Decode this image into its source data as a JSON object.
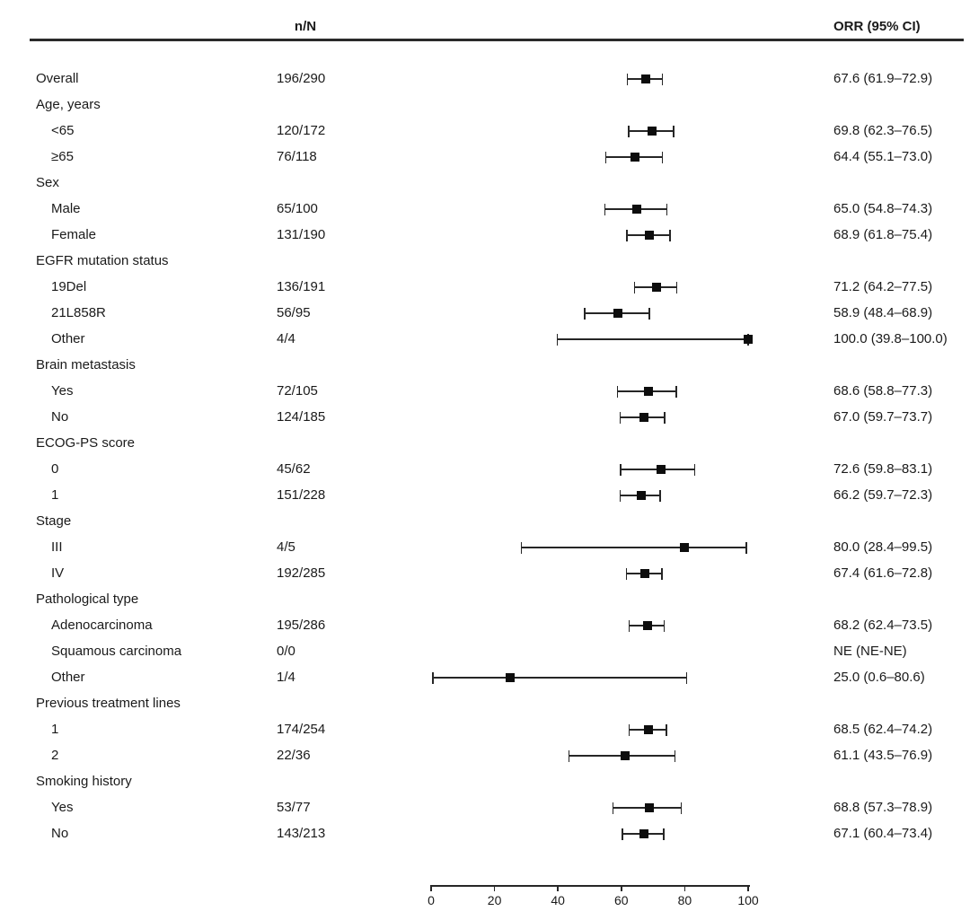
{
  "header": {
    "n_n_label": "n/N",
    "orr_label": "ORR (95% CI)"
  },
  "colors": {
    "text": "#1a1a1a",
    "marker": "#0d0d0d",
    "line": "#262626",
    "background": "#ffffff"
  },
  "chart_data": {
    "type": "forest",
    "title": "",
    "xlabel": "",
    "xlim": [
      0,
      100
    ],
    "x_ticks": [
      0,
      20,
      40,
      60,
      80,
      100
    ],
    "grid": false,
    "columns": {
      "measure_header": "n/N",
      "estimate_header": "ORR (95% CI)"
    },
    "rows": [
      {
        "label": "Overall",
        "indent": 0,
        "nN": "196/290",
        "orr": 67.6,
        "ci": [
          61.9,
          72.9
        ],
        "orr_text": "67.6 (61.9–72.9)"
      },
      {
        "label": "Age, years",
        "indent": 0,
        "nN": "",
        "orr": null,
        "ci": null,
        "orr_text": ""
      },
      {
        "label": "<65",
        "indent": 1,
        "nN": "120/172",
        "orr": 69.8,
        "ci": [
          62.3,
          76.5
        ],
        "orr_text": "69.8 (62.3–76.5)"
      },
      {
        "label": "≥65",
        "indent": 1,
        "nN": "76/118",
        "orr": 64.4,
        "ci": [
          55.1,
          73.0
        ],
        "orr_text": "64.4 (55.1–73.0)"
      },
      {
        "label": "Sex",
        "indent": 0,
        "nN": "",
        "orr": null,
        "ci": null,
        "orr_text": ""
      },
      {
        "label": "Male",
        "indent": 1,
        "nN": "65/100",
        "orr": 65.0,
        "ci": [
          54.8,
          74.3
        ],
        "orr_text": "65.0 (54.8–74.3)"
      },
      {
        "label": "Female",
        "indent": 1,
        "nN": "131/190",
        "orr": 68.9,
        "ci": [
          61.8,
          75.4
        ],
        "orr_text": "68.9 (61.8–75.4)"
      },
      {
        "label": "EGFR mutation status",
        "indent": 0,
        "nN": "",
        "orr": null,
        "ci": null,
        "orr_text": ""
      },
      {
        "label": "19Del",
        "indent": 1,
        "nN": "136/191",
        "orr": 71.2,
        "ci": [
          64.2,
          77.5
        ],
        "orr_text": "71.2 (64.2–77.5)"
      },
      {
        "label": "21L858R",
        "indent": 1,
        "nN": "56/95",
        "orr": 58.9,
        "ci": [
          48.4,
          68.9
        ],
        "orr_text": "58.9 (48.4–68.9)"
      },
      {
        "label": "Other",
        "indent": 1,
        "nN": "4/4",
        "orr": 100.0,
        "ci": [
          39.8,
          100.0
        ],
        "orr_text": "100.0 (39.8–100.0)"
      },
      {
        "label": "Brain metastasis",
        "indent": 0,
        "nN": "",
        "orr": null,
        "ci": null,
        "orr_text": ""
      },
      {
        "label": "Yes",
        "indent": 1,
        "nN": "72/105",
        "orr": 68.6,
        "ci": [
          58.8,
          77.3
        ],
        "orr_text": "68.6 (58.8–77.3)"
      },
      {
        "label": "No",
        "indent": 1,
        "nN": "124/185",
        "orr": 67.0,
        "ci": [
          59.7,
          73.7
        ],
        "orr_text": "67.0 (59.7–73.7)"
      },
      {
        "label": "ECOG-PS score",
        "indent": 0,
        "nN": "",
        "orr": null,
        "ci": null,
        "orr_text": ""
      },
      {
        "label": "0",
        "indent": 1,
        "nN": "45/62",
        "orr": 72.6,
        "ci": [
          59.8,
          83.1
        ],
        "orr_text": "72.6 (59.8–83.1)"
      },
      {
        "label": "1",
        "indent": 1,
        "nN": "151/228",
        "orr": 66.2,
        "ci": [
          59.7,
          72.3
        ],
        "orr_text": "66.2 (59.7–72.3)"
      },
      {
        "label": "Stage",
        "indent": 0,
        "nN": "",
        "orr": null,
        "ci": null,
        "orr_text": ""
      },
      {
        "label": "III",
        "indent": 1,
        "nN": "4/5",
        "orr": 80.0,
        "ci": [
          28.4,
          99.5
        ],
        "orr_text": "80.0 (28.4–99.5)"
      },
      {
        "label": "IV",
        "indent": 1,
        "nN": "192/285",
        "orr": 67.4,
        "ci": [
          61.6,
          72.8
        ],
        "orr_text": "67.4 (61.6–72.8)"
      },
      {
        "label": "Pathological type",
        "indent": 0,
        "nN": "",
        "orr": null,
        "ci": null,
        "orr_text": ""
      },
      {
        "label": "Adenocarcinoma",
        "indent": 1,
        "nN": "195/286",
        "orr": 68.2,
        "ci": [
          62.4,
          73.5
        ],
        "orr_text": "68.2 (62.4–73.5)"
      },
      {
        "label": "Squamous carcinoma",
        "indent": 1,
        "nN": "0/0",
        "orr": null,
        "ci": null,
        "orr_text": "NE (NE-NE)"
      },
      {
        "label": "Other",
        "indent": 1,
        "nN": "1/4",
        "orr": 25.0,
        "ci": [
          0.6,
          80.6
        ],
        "orr_text": "25.0 (0.6–80.6)"
      },
      {
        "label": "Previous treatment lines",
        "indent": 0,
        "nN": "",
        "orr": null,
        "ci": null,
        "orr_text": ""
      },
      {
        "label": "1",
        "indent": 1,
        "nN": "174/254",
        "orr": 68.5,
        "ci": [
          62.4,
          74.2
        ],
        "orr_text": "68.5 (62.4–74.2)"
      },
      {
        "label": "2",
        "indent": 1,
        "nN": "22/36",
        "orr": 61.1,
        "ci": [
          43.5,
          76.9
        ],
        "orr_text": "61.1 (43.5–76.9)"
      },
      {
        "label": "Smoking history",
        "indent": 0,
        "nN": "",
        "orr": null,
        "ci": null,
        "orr_text": ""
      },
      {
        "label": "Yes",
        "indent": 1,
        "nN": "53/77",
        "orr": 68.8,
        "ci": [
          57.3,
          78.9
        ],
        "orr_text": "68.8 (57.3–78.9)"
      },
      {
        "label": "No",
        "indent": 1,
        "nN": "143/213",
        "orr": 67.1,
        "ci": [
          60.4,
          73.4
        ],
        "orr_text": "67.1 (60.4–73.4)"
      }
    ]
  }
}
